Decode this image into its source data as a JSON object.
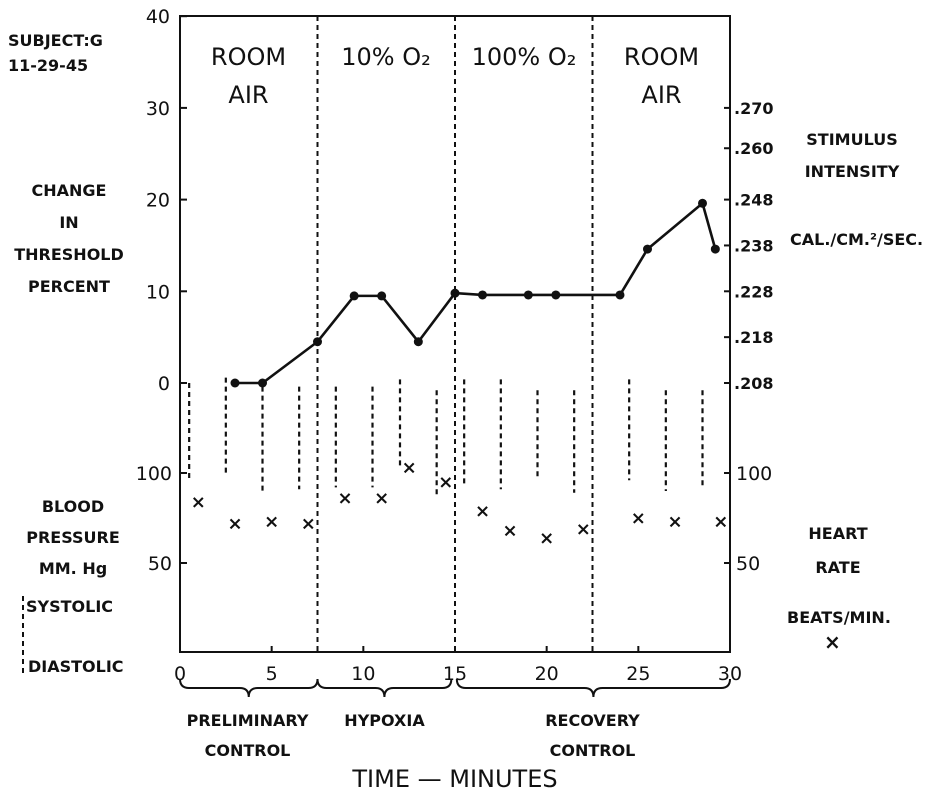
{
  "subject": {
    "line1": "SUBJECT:G",
    "line2": "11-29-45"
  },
  "left_axis": {
    "lines": [
      "CHANGE",
      "IN",
      "THRESHOLD",
      "PERCENT"
    ]
  },
  "bp_label": {
    "lines": [
      "BLOOD",
      "PRESSURE",
      "MM. Hg"
    ]
  },
  "bp_legend": {
    "systolic": "SYSTOLIC",
    "diastolic": "DIASTOLIC"
  },
  "right_axis": {
    "stim_lines": [
      "STIMULUS",
      "INTENSITY"
    ],
    "unit": "CAL./CM.²/SEC."
  },
  "hr_label": {
    "lines": [
      "HEART",
      "RATE"
    ],
    "unit": "BEATS/MIN.",
    "marker": "×"
  },
  "phases": [
    {
      "name": "ROOM AIR",
      "lines": [
        "ROOM",
        "AIR"
      ]
    },
    {
      "name": "10% O2",
      "lines": [
        "10% O₂"
      ]
    },
    {
      "name": "100% O2",
      "lines": [
        "100% O₂"
      ]
    },
    {
      "name": "ROOM AIR",
      "lines": [
        "ROOM",
        "AIR"
      ]
    }
  ],
  "periods": [
    {
      "lines": [
        "PRELIMINARY",
        "CONTROL"
      ]
    },
    {
      "lines": [
        "HYPOXIA"
      ]
    },
    {
      "lines": [
        "RECOVERY",
        "CONTROL"
      ]
    }
  ],
  "xlabel": "TIME — MINUTES",
  "chart_data": {
    "type": "line",
    "xlim": [
      0,
      30
    ],
    "x_ticks": [
      0,
      5,
      10,
      15,
      20,
      25,
      30
    ],
    "phase_boundaries": [
      7.5,
      15,
      22.5
    ],
    "threshold": {
      "ylim": [
        0,
        40
      ],
      "y_ticks": [
        0,
        10,
        20,
        30,
        40
      ],
      "x": [
        3,
        4.5,
        7.5,
        9.5,
        11,
        13,
        15,
        16.5,
        19,
        20.5,
        24,
        25.5,
        28.5,
        29.2
      ],
      "y": [
        0,
        0,
        4.5,
        9.5,
        9.5,
        4.5,
        9.8,
        9.6,
        9.6,
        9.6,
        9.6,
        14.6,
        19.6,
        14.6
      ]
    },
    "stimulus_ticks": [
      ".208",
      ".218",
      ".228",
      ".238",
      ".248",
      ".260",
      ".270"
    ],
    "blood_pressure": {
      "y_ticks": [
        50,
        100
      ],
      "x": [
        0.5,
        2.5,
        4.5,
        6.5,
        8.5,
        10.5,
        12,
        14,
        15.5,
        17.5,
        19.5,
        21.5,
        24.5,
        26.5,
        28.5
      ],
      "systolic": [
        150,
        153,
        148,
        148,
        148,
        148,
        152,
        146,
        152,
        152,
        146,
        146,
        152,
        146,
        146
      ],
      "diastolic": [
        96,
        98,
        90,
        91,
        92,
        92,
        102,
        88,
        92,
        91,
        97,
        89,
        96,
        90,
        92
      ]
    },
    "heart_rate": {
      "y_ticks": [
        50,
        100
      ],
      "x": [
        1,
        3,
        5,
        7,
        9,
        11,
        12.5,
        14.5,
        16.5,
        18,
        20,
        22,
        25,
        27,
        29.5
      ],
      "values": [
        84,
        72,
        73,
        72,
        86,
        86,
        103,
        95,
        79,
        68,
        64,
        69,
        75,
        73,
        73
      ]
    }
  }
}
